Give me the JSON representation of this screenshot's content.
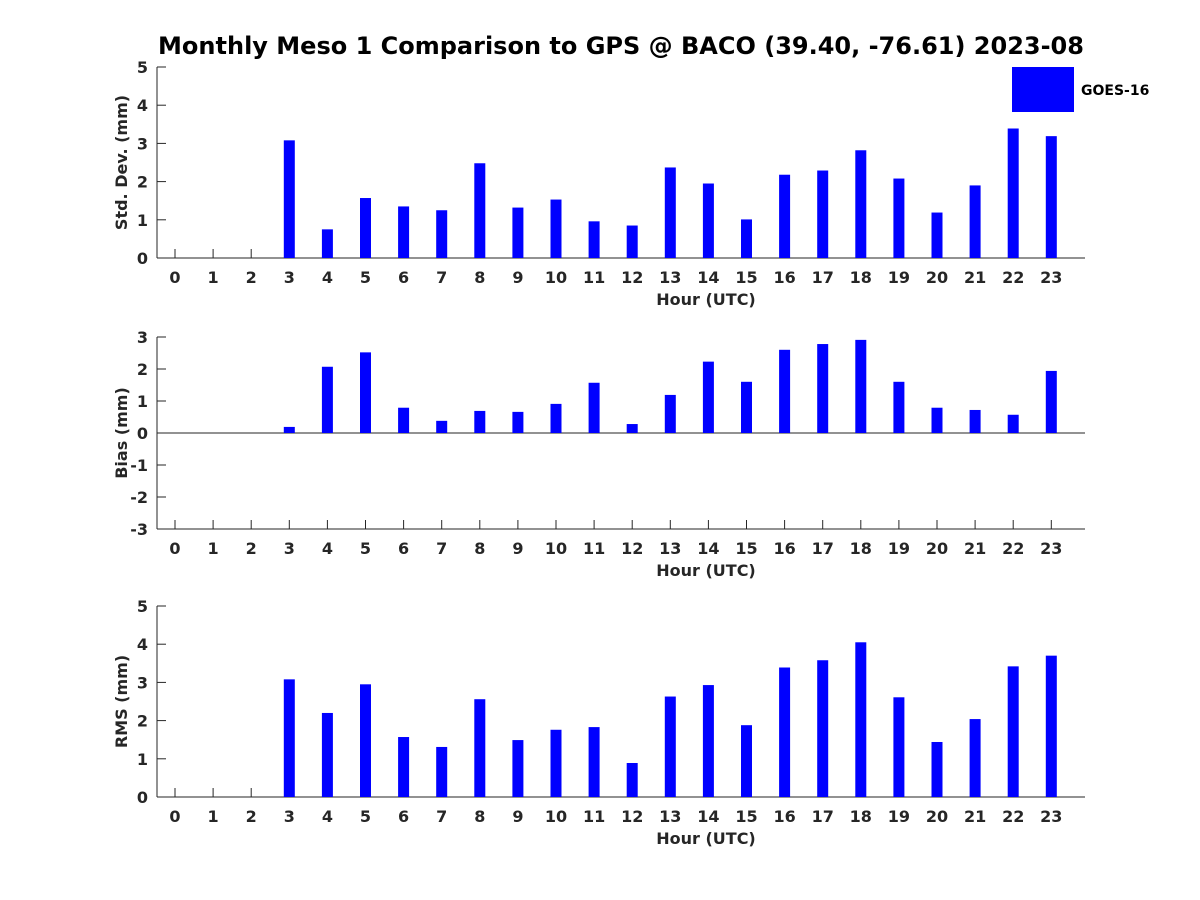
{
  "title": "Monthly Meso 1 Comparison to GPS @ BACO (39.40, -76.61) 2023-08",
  "legend": {
    "label": "GOES-16",
    "color": "#0000ff"
  },
  "chart_data": [
    {
      "type": "bar",
      "xlabel": "Hour (UTC)",
      "ylabel": "Std. Dev. (mm)",
      "ylim": [
        0,
        5
      ],
      "yticks": [
        0,
        1,
        2,
        3,
        4,
        5
      ],
      "categories": [
        "0",
        "1",
        "2",
        "3",
        "4",
        "5",
        "6",
        "7",
        "8",
        "9",
        "10",
        "11",
        "12",
        "13",
        "14",
        "15",
        "16",
        "17",
        "18",
        "19",
        "20",
        "21",
        "22",
        "23"
      ],
      "series": [
        {
          "name": "GOES-16",
          "color": "#0000ff",
          "values": [
            null,
            null,
            null,
            3.08,
            0.75,
            1.57,
            1.35,
            1.25,
            2.48,
            1.32,
            1.53,
            0.96,
            0.85,
            2.37,
            1.95,
            1.01,
            2.18,
            2.29,
            2.82,
            2.08,
            1.19,
            1.9,
            3.39,
            3.19
          ]
        }
      ]
    },
    {
      "type": "bar",
      "xlabel": "Hour (UTC)",
      "ylabel": "Bias (mm)",
      "ylim": [
        -3,
        3
      ],
      "yticks": [
        -3,
        -2,
        -1,
        0,
        1,
        2,
        3
      ],
      "categories": [
        "0",
        "1",
        "2",
        "3",
        "4",
        "5",
        "6",
        "7",
        "8",
        "9",
        "10",
        "11",
        "12",
        "13",
        "14",
        "15",
        "16",
        "17",
        "18",
        "19",
        "20",
        "21",
        "22",
        "23"
      ],
      "series": [
        {
          "name": "GOES-16",
          "color": "#0000ff",
          "values": [
            null,
            null,
            null,
            0.19,
            2.07,
            2.52,
            0.79,
            0.38,
            0.69,
            0.66,
            0.91,
            1.57,
            0.28,
            1.19,
            2.23,
            1.6,
            2.6,
            2.78,
            2.91,
            1.6,
            0.79,
            0.72,
            0.57,
            1.94
          ]
        }
      ]
    },
    {
      "type": "bar",
      "xlabel": "Hour (UTC)",
      "ylabel": "RMS (mm)",
      "ylim": [
        0,
        5
      ],
      "yticks": [
        0,
        1,
        2,
        3,
        4,
        5
      ],
      "categories": [
        "0",
        "1",
        "2",
        "3",
        "4",
        "5",
        "6",
        "7",
        "8",
        "9",
        "10",
        "11",
        "12",
        "13",
        "14",
        "15",
        "16",
        "17",
        "18",
        "19",
        "20",
        "21",
        "22",
        "23"
      ],
      "series": [
        {
          "name": "GOES-16",
          "color": "#0000ff",
          "values": [
            null,
            null,
            null,
            3.08,
            2.2,
            2.95,
            1.57,
            1.31,
            2.56,
            1.49,
            1.76,
            1.83,
            0.89,
            2.63,
            2.93,
            1.88,
            3.39,
            3.58,
            4.05,
            2.61,
            1.44,
            2.04,
            3.42,
            3.7
          ]
        }
      ]
    }
  ]
}
